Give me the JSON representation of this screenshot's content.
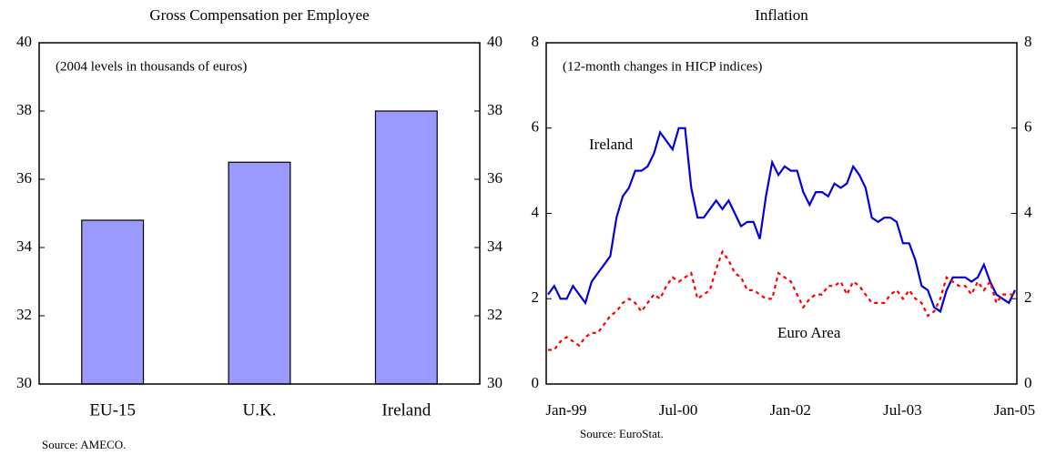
{
  "chart_data": [
    {
      "type": "bar",
      "title": "Gross Compensation per Employee",
      "subtitle": "(2004 levels in thousands of euros)",
      "source": "Source: AMECO.",
      "categories": [
        "EU-15",
        "U.K.",
        "Ireland"
      ],
      "values": [
        34.8,
        36.5,
        38.0
      ],
      "color": "#9999ff",
      "ylim": [
        30,
        40
      ],
      "yticks": [
        30,
        32,
        34,
        36,
        38,
        40
      ],
      "mirror_axis": true
    },
    {
      "type": "line",
      "title": "Inflation",
      "subtitle": "(12-month changes in HICP indices)",
      "source": "Source: EuroStat.",
      "x": [
        "Jan-99",
        "Feb-99",
        "Mar-99",
        "Apr-99",
        "May-99",
        "Jun-99",
        "Jul-99",
        "Aug-99",
        "Sep-99",
        "Oct-99",
        "Nov-99",
        "Dec-99",
        "Jan-00",
        "Feb-00",
        "Mar-00",
        "Apr-00",
        "May-00",
        "Jun-00",
        "Jul-00",
        "Aug-00",
        "Sep-00",
        "Oct-00",
        "Nov-00",
        "Dec-00",
        "Jan-01",
        "Feb-01",
        "Mar-01",
        "Apr-01",
        "May-01",
        "Jun-01",
        "Jul-01",
        "Aug-01",
        "Sep-01",
        "Oct-01",
        "Nov-01",
        "Dec-01",
        "Jan-02",
        "Feb-02",
        "Mar-02",
        "Apr-02",
        "May-02",
        "Jun-02",
        "Jul-02",
        "Aug-02",
        "Sep-02",
        "Oct-02",
        "Nov-02",
        "Dec-02",
        "Jan-03",
        "Feb-03",
        "Mar-03",
        "Apr-03",
        "May-03",
        "Jun-03",
        "Jul-03",
        "Aug-03",
        "Sep-03",
        "Oct-03",
        "Nov-03",
        "Dec-03",
        "Jan-04",
        "Feb-04",
        "Mar-04",
        "Apr-04",
        "May-04",
        "Jun-04",
        "Jul-04",
        "Aug-04",
        "Sep-04",
        "Oct-04",
        "Nov-04",
        "Dec-04",
        "Jan-05",
        "Feb-05",
        "Mar-05",
        "Apr-05"
      ],
      "xticks": [
        "Jan-99",
        "Jul-00",
        "Jan-02",
        "Jul-03",
        "Jan-05"
      ],
      "series": [
        {
          "name": "Ireland",
          "color": "#0000dd",
          "dashed": false,
          "values": [
            2.1,
            2.3,
            2.0,
            2.0,
            2.3,
            2.1,
            1.9,
            2.4,
            2.6,
            2.8,
            3.0,
            3.9,
            4.4,
            4.6,
            5.0,
            5.0,
            5.1,
            5.4,
            5.9,
            5.7,
            5.5,
            6.0,
            6.0,
            4.6,
            3.9,
            3.9,
            4.1,
            4.3,
            4.1,
            4.3,
            4.0,
            3.7,
            3.8,
            3.8,
            3.4,
            4.4,
            5.2,
            4.9,
            5.1,
            5.0,
            5.0,
            4.5,
            4.2,
            4.5,
            4.5,
            4.4,
            4.7,
            4.6,
            4.7,
            5.1,
            4.9,
            4.6,
            3.9,
            3.8,
            3.9,
            3.9,
            3.8,
            3.3,
            3.3,
            2.9,
            2.3,
            2.2,
            1.8,
            1.7,
            2.2,
            2.5,
            2.5,
            2.5,
            2.4,
            2.5,
            2.8,
            2.4,
            2.1,
            2.0,
            1.9,
            2.2
          ]
        },
        {
          "name": "Euro Area",
          "color": "#ff0000",
          "dashed": true,
          "values": [
            0.8,
            0.8,
            1.0,
            1.1,
            1.0,
            0.9,
            1.1,
            1.2,
            1.2,
            1.4,
            1.6,
            1.7,
            1.9,
            2.0,
            1.9,
            1.7,
            1.9,
            2.1,
            2.0,
            2.3,
            2.5,
            2.4,
            2.5,
            2.6,
            2.0,
            2.1,
            2.2,
            2.7,
            3.1,
            2.9,
            2.6,
            2.5,
            2.2,
            2.2,
            2.1,
            2.0,
            2.0,
            2.6,
            2.5,
            2.4,
            2.1,
            1.8,
            2.0,
            2.1,
            2.1,
            2.3,
            2.3,
            2.4,
            2.1,
            2.4,
            2.3,
            2.1,
            1.9,
            1.9,
            1.9,
            2.1,
            2.2,
            2.0,
            2.2,
            2.0,
            1.9,
            1.6,
            1.7,
            2.0,
            2.5,
            2.4,
            2.3,
            2.3,
            2.1,
            2.4,
            2.2,
            2.4,
            1.9,
            2.1,
            2.1,
            2.1
          ]
        }
      ],
      "ylim": [
        0,
        8
      ],
      "yticks": [
        0,
        2,
        4,
        6,
        8
      ],
      "mirror_axis": true
    }
  ]
}
